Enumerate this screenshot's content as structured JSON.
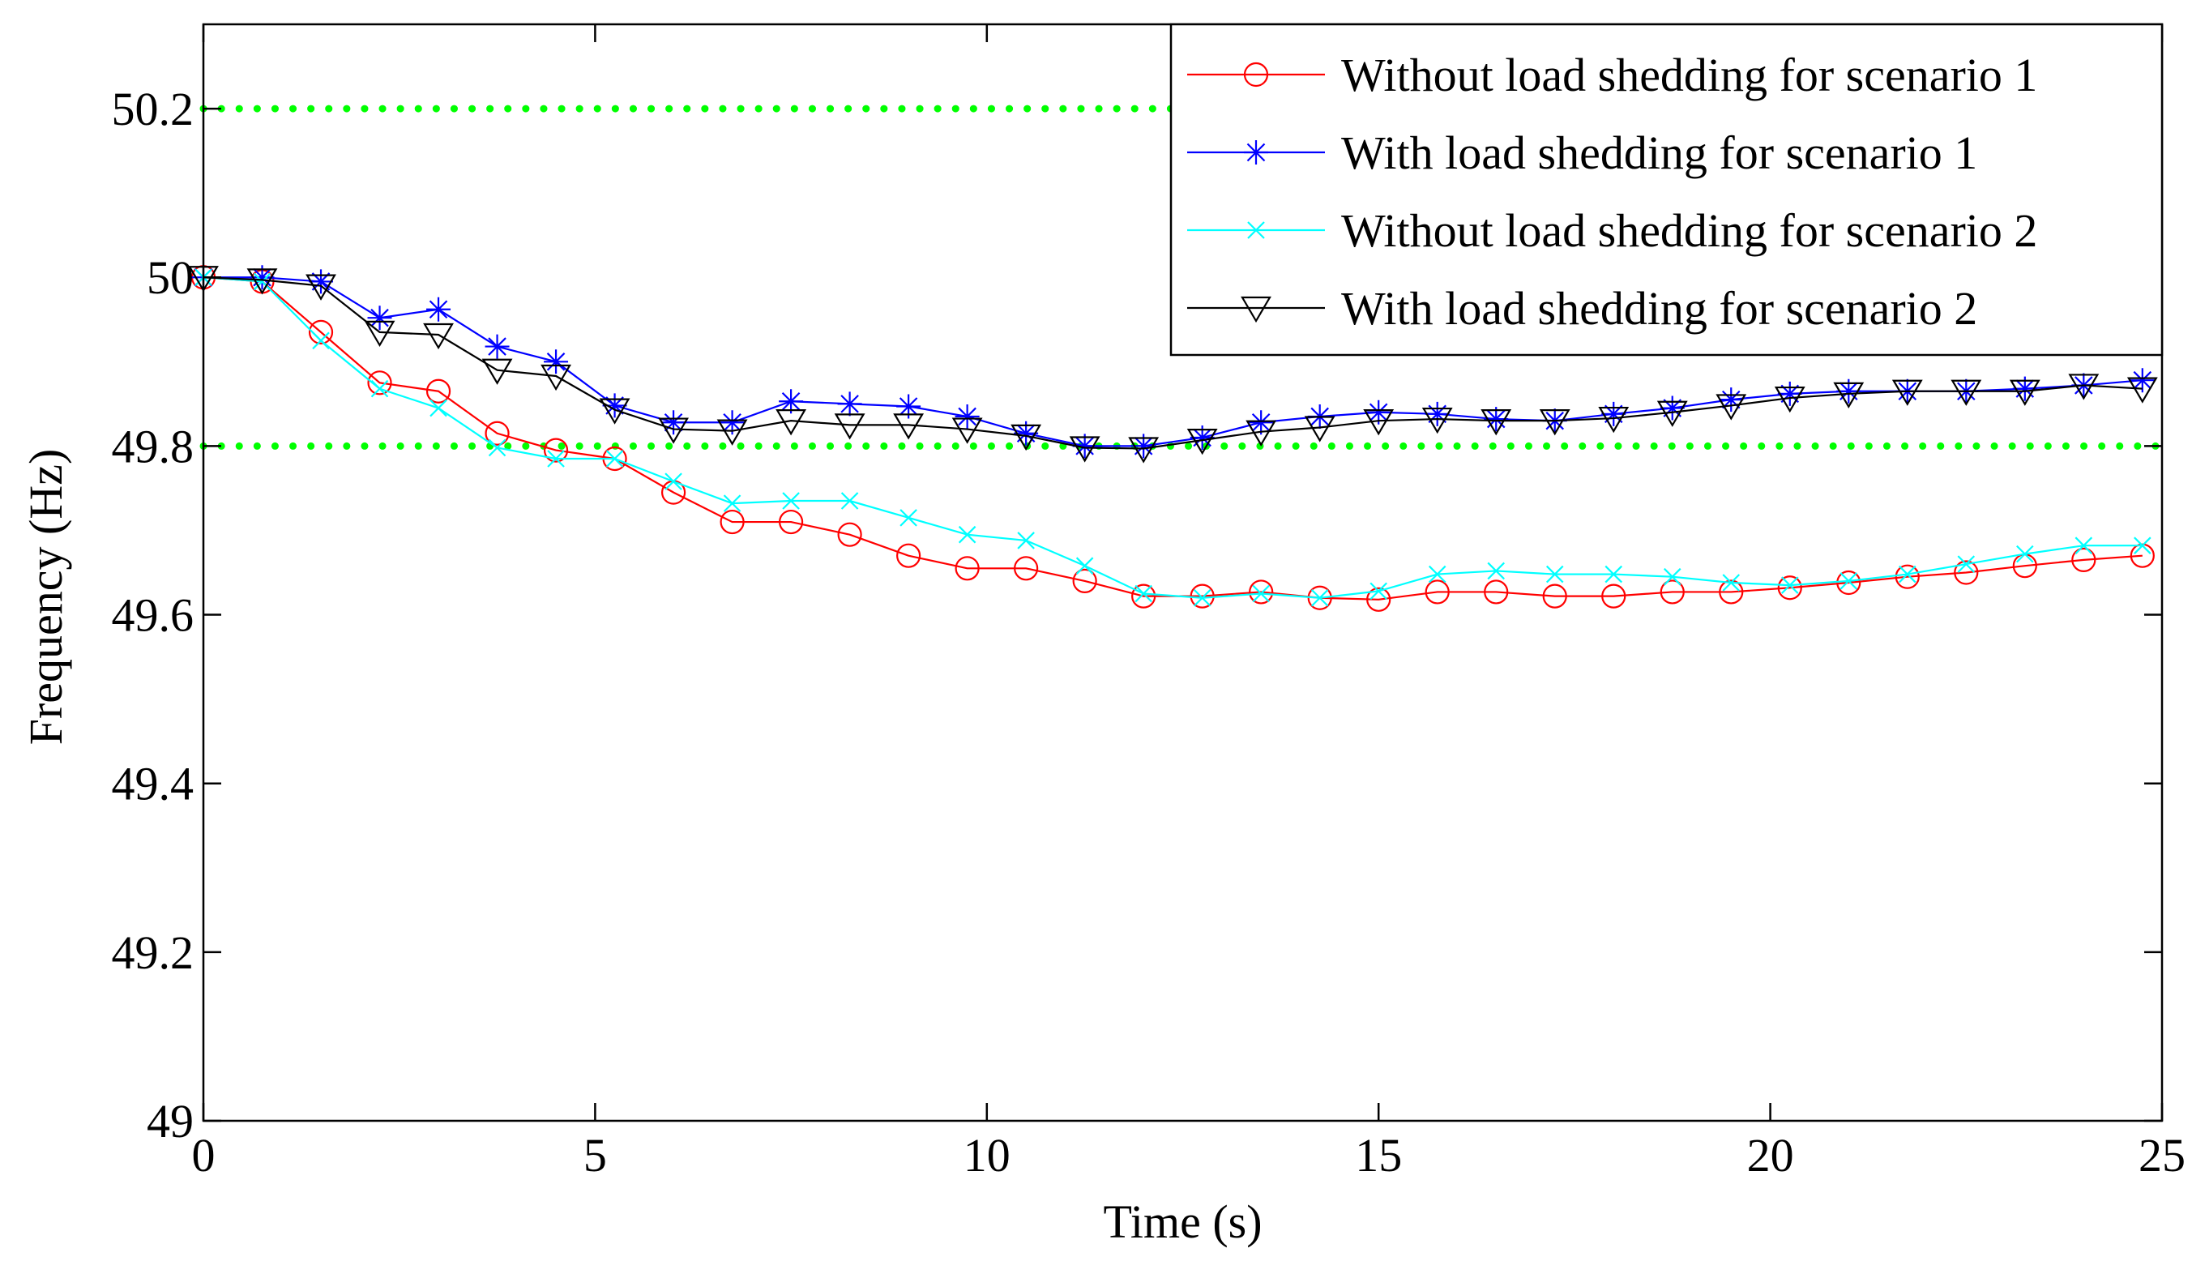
{
  "chart_data": {
    "type": "line",
    "xlabel": "Time (s)",
    "ylabel": "Frequency (Hz)",
    "xlim": [
      0,
      25
    ],
    "ylim": [
      49,
      50.3
    ],
    "xticks": [
      0,
      5,
      10,
      15,
      20,
      25
    ],
    "xtick_labels": [
      "0",
      "5",
      "10",
      "15",
      "20",
      "25"
    ],
    "yticks": [
      49,
      49.2,
      49.4,
      49.6,
      49.8,
      50,
      50.2
    ],
    "ytick_labels": [
      "49",
      "49.2",
      "49.4",
      "49.6",
      "49.8",
      "50",
      "50.2"
    ],
    "grid": false,
    "legend_position": "top-right",
    "x": [
      0,
      0.75,
      1.5,
      2.25,
      3,
      3.75,
      4.5,
      5.25,
      6,
      6.75,
      7.5,
      8.25,
      9,
      9.75,
      10.5,
      11.25,
      12,
      12.75,
      13.5,
      14.25,
      15,
      15.75,
      16.5,
      17.25,
      18,
      18.75,
      19.5,
      20.25,
      21,
      21.75,
      22.5,
      23.25,
      24,
      24.75
    ],
    "series": [
      {
        "name": "Without load shedding for scenario 1",
        "color": "#ff0000",
        "marker": "circle",
        "values": [
          50.0,
          49.995,
          49.935,
          49.875,
          49.865,
          49.815,
          49.795,
          49.785,
          49.745,
          49.71,
          49.71,
          49.695,
          49.67,
          49.655,
          49.655,
          49.64,
          49.622,
          49.622,
          49.627,
          49.62,
          49.618,
          49.627,
          49.627,
          49.622,
          49.622,
          49.627,
          49.627,
          49.632,
          49.638,
          49.645,
          49.65,
          49.658,
          49.665,
          49.67
        ]
      },
      {
        "name": "With load shedding for scenario 1",
        "color": "#0000ff",
        "marker": "star",
        "values": [
          50.0,
          50.0,
          49.995,
          49.952,
          49.962,
          49.918,
          49.9,
          49.848,
          49.828,
          49.828,
          49.853,
          49.85,
          49.847,
          49.835,
          49.815,
          49.8,
          49.8,
          49.81,
          49.828,
          49.835,
          49.84,
          49.838,
          49.832,
          49.83,
          49.838,
          49.845,
          49.855,
          49.862,
          49.865,
          49.865,
          49.865,
          49.868,
          49.872,
          49.878
        ]
      },
      {
        "name": "Without load shedding for scenario 2",
        "color": "#00ffff",
        "marker": "x",
        "values": [
          50.0,
          49.995,
          49.925,
          49.868,
          49.845,
          49.798,
          49.785,
          49.785,
          49.758,
          49.732,
          49.735,
          49.735,
          49.715,
          49.695,
          49.688,
          49.658,
          49.625,
          49.62,
          49.625,
          49.62,
          49.628,
          49.648,
          49.652,
          49.648,
          49.648,
          49.645,
          49.638,
          49.635,
          49.64,
          49.648,
          49.66,
          49.672,
          49.682,
          49.682
        ]
      },
      {
        "name": "With load shedding for scenario 2",
        "color": "#000000",
        "marker": "triangle-down",
        "values": [
          50.0,
          49.997,
          49.99,
          49.935,
          49.932,
          49.89,
          49.883,
          49.843,
          49.82,
          49.818,
          49.83,
          49.825,
          49.825,
          49.82,
          49.812,
          49.798,
          49.797,
          49.807,
          49.817,
          49.822,
          49.83,
          49.832,
          49.83,
          49.83,
          49.833,
          49.84,
          49.848,
          49.857,
          49.862,
          49.865,
          49.865,
          49.865,
          49.872,
          49.868
        ]
      }
    ],
    "reference_lines": [
      {
        "value": 50.2,
        "color": "#00ff00",
        "style": "dotted"
      },
      {
        "value": 49.8,
        "color": "#00ff00",
        "style": "dotted"
      }
    ]
  }
}
